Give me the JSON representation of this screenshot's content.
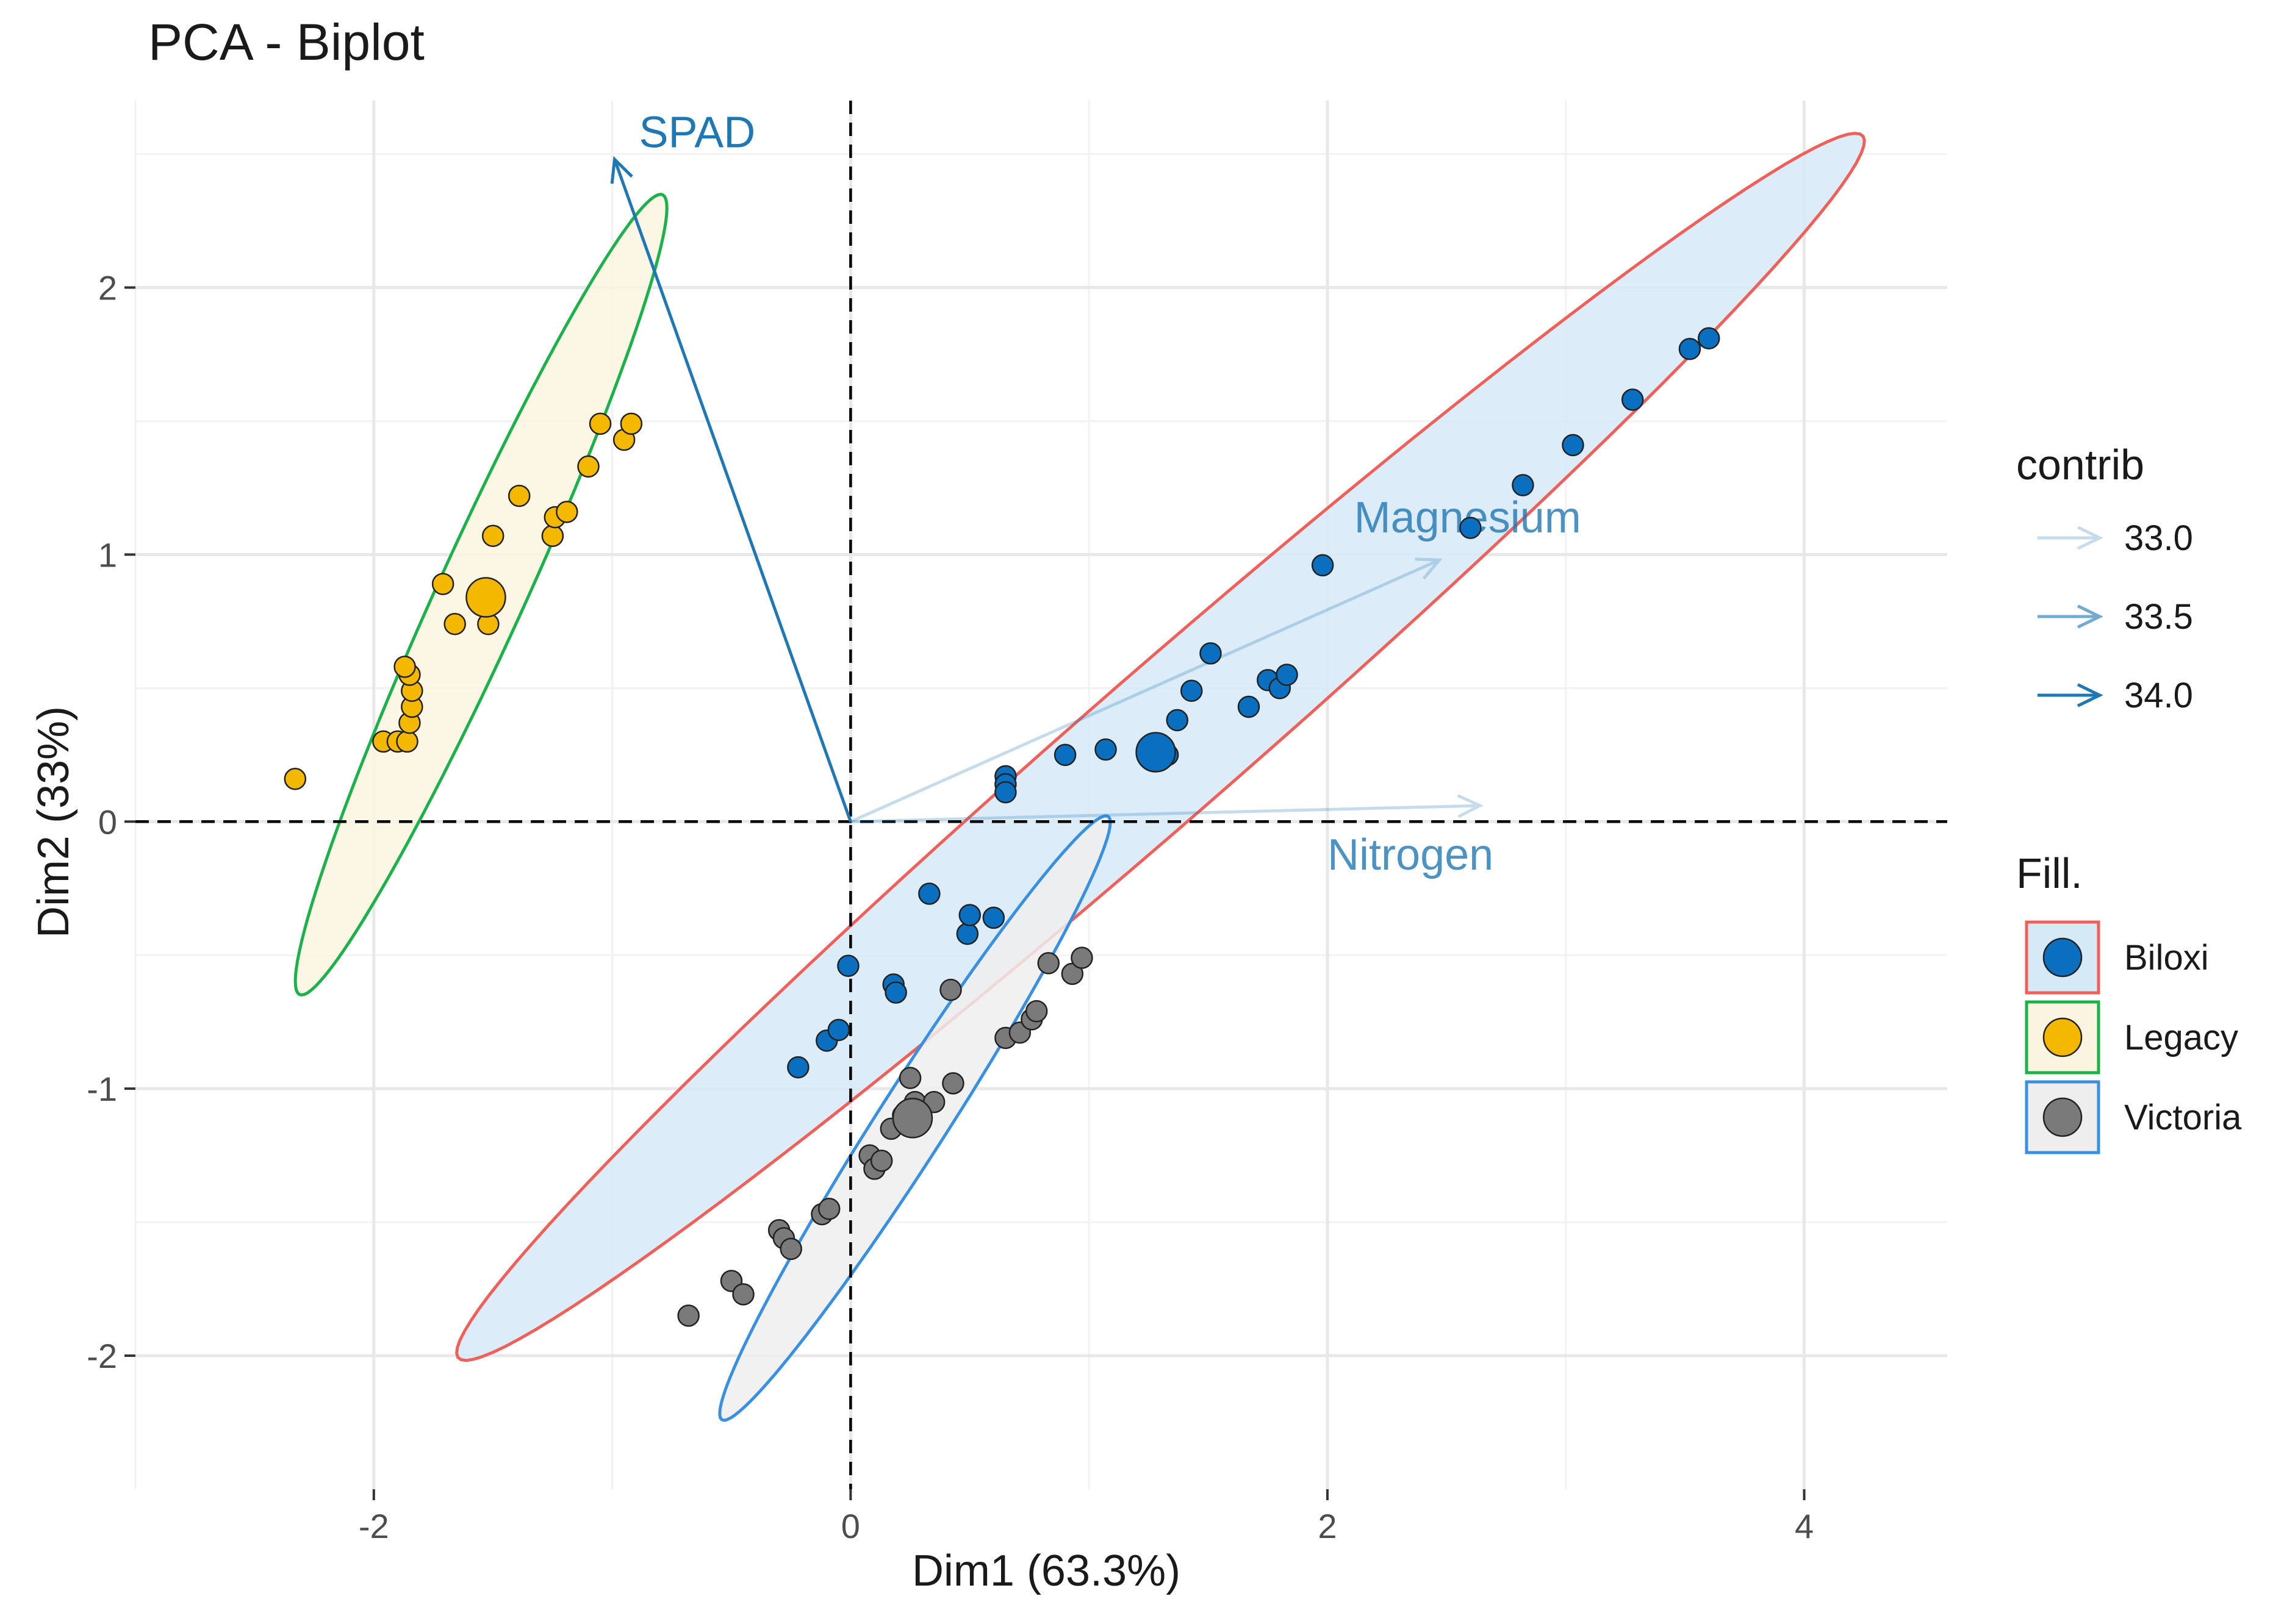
{
  "chart_data": {
    "type": "scatter",
    "title": "PCA - Biplot",
    "xlabel": "Dim1 (63.3%)",
    "ylabel": "Dim2 (33%)",
    "xlim": [
      -3.0,
      4.6
    ],
    "ylim": [
      -2.5,
      2.7
    ],
    "x_ticks": [
      -2,
      0,
      2,
      4
    ],
    "y_ticks": [
      -2,
      -1,
      0,
      1,
      2
    ],
    "x_tick_labels": [
      "-2",
      "0",
      "2",
      "4"
    ],
    "y_tick_labels": [
      "-2",
      "-1",
      "0",
      "1",
      "2"
    ],
    "grid": true,
    "reference_lines": {
      "x": 0,
      "y": 0,
      "style": "dashed"
    },
    "colors": {
      "Biloxi": "#0b6fbf",
      "Legacy": "#f5b800",
      "Victoria": "#7a7a7a",
      "ellipse_Biloxi_stroke": "#f0605a",
      "ellipse_Biloxi_fill": "#d6e9f7",
      "ellipse_Legacy_stroke": "#1db14b",
      "ellipse_Legacy_fill": "#fbf4e0",
      "ellipse_Victoria_stroke": "#3a90e0",
      "ellipse_Victoria_fill": "#eeeeee",
      "arrow": "#1f77b4"
    },
    "series": [
      {
        "name": "Biloxi",
        "points": [
          [
            -0.22,
            -0.92
          ],
          [
            -0.1,
            -0.82
          ],
          [
            -0.05,
            -0.78
          ],
          [
            -0.01,
            -0.54
          ],
          [
            0.18,
            -0.61
          ],
          [
            0.19,
            -0.64
          ],
          [
            0.33,
            -0.27
          ],
          [
            0.49,
            -0.42
          ],
          [
            0.5,
            -0.35
          ],
          [
            0.6,
            -0.36
          ],
          [
            0.65,
            0.17
          ],
          [
            0.65,
            0.14
          ],
          [
            0.65,
            0.11
          ],
          [
            0.9,
            0.25
          ],
          [
            1.07,
            0.27
          ],
          [
            1.33,
            0.25
          ],
          [
            1.37,
            0.38
          ],
          [
            1.43,
            0.49
          ],
          [
            1.51,
            0.63
          ],
          [
            1.67,
            0.43
          ],
          [
            1.75,
            0.53
          ],
          [
            1.8,
            0.5
          ],
          [
            1.83,
            0.55
          ],
          [
            1.98,
            0.96
          ],
          [
            2.6,
            1.1
          ],
          [
            2.82,
            1.26
          ],
          [
            3.03,
            1.41
          ],
          [
            3.28,
            1.58
          ],
          [
            3.52,
            1.77
          ],
          [
            3.6,
            1.81
          ]
        ],
        "centroid": [
          1.28,
          0.26
        ]
      },
      {
        "name": "Legacy",
        "points": [
          [
            -2.33,
            0.16
          ],
          [
            -1.96,
            0.3
          ],
          [
            -1.9,
            0.3
          ],
          [
            -1.86,
            0.3
          ],
          [
            -1.85,
            0.37
          ],
          [
            -1.84,
            0.43
          ],
          [
            -1.84,
            0.49
          ],
          [
            -1.85,
            0.55
          ],
          [
            -1.87,
            0.58
          ],
          [
            -1.71,
            0.89
          ],
          [
            -1.66,
            0.74
          ],
          [
            -1.52,
            0.74
          ],
          [
            -1.5,
            1.07
          ],
          [
            -1.39,
            1.22
          ],
          [
            -1.25,
            1.07
          ],
          [
            -1.24,
            1.14
          ],
          [
            -1.19,
            1.16
          ],
          [
            -1.1,
            1.33
          ],
          [
            -1.05,
            1.49
          ],
          [
            -0.95,
            1.43
          ],
          [
            -0.92,
            1.49
          ]
        ],
        "centroid": [
          -1.53,
          0.84
        ]
      },
      {
        "name": "Victoria",
        "points": [
          [
            -0.68,
            -1.85
          ],
          [
            -0.5,
            -1.72
          ],
          [
            -0.45,
            -1.77
          ],
          [
            -0.3,
            -1.53
          ],
          [
            -0.28,
            -1.56
          ],
          [
            -0.25,
            -1.6
          ],
          [
            -0.12,
            -1.47
          ],
          [
            -0.09,
            -1.45
          ],
          [
            0.08,
            -1.25
          ],
          [
            0.1,
            -1.3
          ],
          [
            0.13,
            -1.27
          ],
          [
            0.17,
            -1.15
          ],
          [
            0.22,
            -1.1
          ],
          [
            0.25,
            -0.96
          ],
          [
            0.27,
            -1.05
          ],
          [
            0.35,
            -1.05
          ],
          [
            0.42,
            -0.63
          ],
          [
            0.43,
            -0.98
          ],
          [
            0.65,
            -0.81
          ],
          [
            0.71,
            -0.79
          ],
          [
            0.76,
            -0.74
          ],
          [
            0.78,
            -0.71
          ],
          [
            0.83,
            -0.53
          ],
          [
            0.93,
            -0.57
          ],
          [
            0.97,
            -0.51
          ]
        ],
        "centroid": [
          0.26,
          -1.11
        ]
      }
    ],
    "ellipses": [
      {
        "group": "Biloxi",
        "cx": 1.3,
        "cy": 0.28,
        "a": 3.73,
        "b": 0.29,
        "angle_deg": 37.8
      },
      {
        "group": "Legacy",
        "cx": -1.55,
        "cy": 0.85,
        "a": 1.68,
        "b": 0.18,
        "angle_deg": 63.0
      },
      {
        "group": "Victoria",
        "cx": 0.27,
        "cy": -1.11,
        "a": 1.39,
        "b": 0.14,
        "angle_deg": 54.3
      }
    ],
    "variables": [
      {
        "name": "SPAD",
        "x": -0.99,
        "y": 2.48,
        "contrib": 34.0
      },
      {
        "name": "Magnesium",
        "x": 2.47,
        "y": 0.98,
        "contrib": 33.0
      },
      {
        "name": "Nitrogen",
        "x": 2.64,
        "y": 0.06,
        "contrib": 33.0
      }
    ],
    "legend": {
      "contrib_title": "contrib",
      "contrib_levels": [
        "33.0",
        "33.5",
        "34.0"
      ],
      "fill_title": "Fill.",
      "fill_entries": [
        "Biloxi",
        "Legacy",
        "Victoria"
      ],
      "placement": "right"
    }
  }
}
